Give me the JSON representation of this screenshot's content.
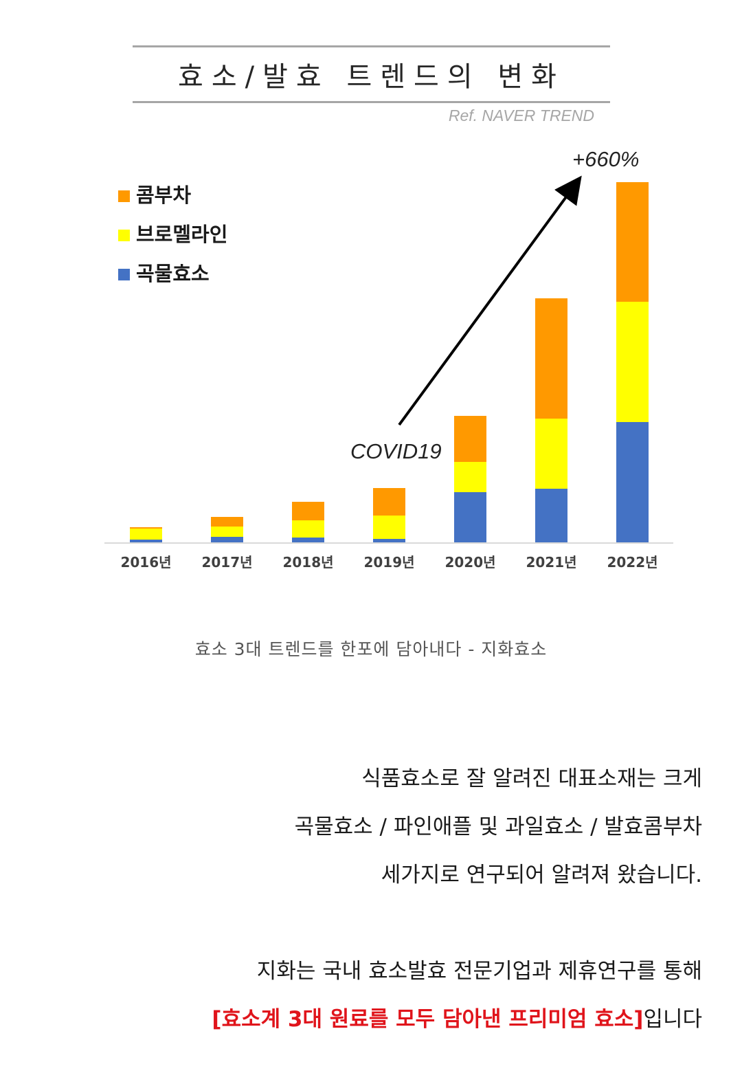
{
  "title": "효소/발효 트렌드의 변화",
  "ref": "Ref. NAVER TREND",
  "chart_data": {
    "type": "bar",
    "stacked": true,
    "categories": [
      "2016년",
      "2017년",
      "2018년",
      "2019년",
      "2020년",
      "2021년",
      "2022년"
    ],
    "series": [
      {
        "name": "곡물효소",
        "color": "#4472c4",
        "values": [
          4,
          8,
          7,
          5,
          73,
          78,
          175
        ]
      },
      {
        "name": "브로멜라인",
        "color": "#ffff00",
        "values": [
          16,
          15,
          25,
          34,
          44,
          102,
          175
        ]
      },
      {
        "name": "콤부차",
        "color": "#ff9900",
        "values": [
          2,
          14,
          27,
          40,
          67,
          175,
          174
        ]
      }
    ],
    "legend_position": "top-left",
    "grid": false,
    "annotations": {
      "arrow_start_label": "COVID19",
      "arrow_end_label": "+660%"
    }
  },
  "caption": "효소 3대 트렌드를 한포에 담아내다 - 지화효소",
  "paragraph1": [
    "식품효소로 잘 알려진 대표소재는 크게",
    "곡물효소 / 파인애플 및 과일효소 / 발효콤부차",
    "세가지로 연구되어 알려져 왔습니다."
  ],
  "paragraph2": {
    "line1": "지화는 국내 효소발효 전문기업과 제휴연구를 통해",
    "highlight": "[효소계 3대 원료를 모두 담아낸 프리미엄 효소]",
    "suffix": "입니다"
  }
}
